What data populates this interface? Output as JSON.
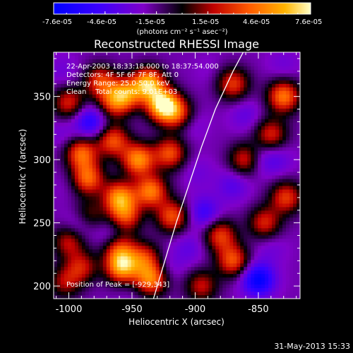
{
  "chart_data": {
    "type": "heatmap",
    "title": "Reconstructed RHESSI Image",
    "xlabel": "Heliocentric X (arcsec)",
    "ylabel": "Heliocentric Y (arcsec)",
    "xlim": [
      -1012,
      -817
    ],
    "ylim": [
      190,
      385
    ],
    "x_ticks": [
      -1000,
      -950,
      -900,
      -850
    ],
    "y_ticks": [
      200,
      250,
      300,
      350
    ],
    "colorbar": {
      "min": -7.6e-05,
      "max": 7.6e-05,
      "tick_labels": [
        "-7.6e-05",
        "-4.6e-05",
        "-1.5e-05",
        "1.5e-05",
        "4.6e-05",
        "7.6e-05"
      ],
      "units": "(photons cm⁻² s⁻¹ asec⁻²)",
      "colors": [
        "#0000ff",
        "#3a00ff",
        "#8000c8",
        "#000000",
        "#c00000",
        "#ff5a00",
        "#ffb400",
        "#ffffc8"
      ]
    },
    "annotations": [
      "22-Apr-2003 18:33:18.000 to 18:37:54.000",
      "Detectors: 4F 5F 6F 7F 8F, Att 0",
      "Energy Range: 25.0-50.0 keV",
      "Clean    Total counts: 9.01E+03"
    ],
    "peak_label": "Position of Peak = [-929,343]",
    "peak": [
      -929,
      343
    ],
    "limb_curve": [
      [
        -933,
        190
      ],
      [
        -924,
        220
      ],
      [
        -915,
        250
      ],
      [
        -905,
        280
      ],
      [
        -895,
        310
      ],
      [
        -884,
        340
      ],
      [
        -870,
        370
      ],
      [
        -862,
        385
      ]
    ],
    "blobs": [
      {
        "x": -925,
        "y": 343,
        "v": 7.6e-05
      },
      {
        "x": -937,
        "y": 360,
        "v": 6e-05
      },
      {
        "x": -955,
        "y": 352,
        "v": 4e-05
      },
      {
        "x": -975,
        "y": 362,
        "v": 3e-05
      },
      {
        "x": -912,
        "y": 335,
        "v": 3e-05
      },
      {
        "x": -965,
        "y": 345,
        "v": 2.5e-05
      },
      {
        "x": -1000,
        "y": 345,
        "v": 2.5e-05
      },
      {
        "x": -990,
        "y": 305,
        "v": 4e-05
      },
      {
        "x": -965,
        "y": 315,
        "v": 3.5e-05
      },
      {
        "x": -945,
        "y": 300,
        "v": 5e-05
      },
      {
        "x": -920,
        "y": 305,
        "v": 3.5e-05
      },
      {
        "x": -985,
        "y": 285,
        "v": 4e-05
      },
      {
        "x": -960,
        "y": 270,
        "v": 5e-05
      },
      {
        "x": -935,
        "y": 275,
        "v": 4.5e-05
      },
      {
        "x": -918,
        "y": 255,
        "v": 3.5e-05
      },
      {
        "x": -985,
        "y": 255,
        "v": 2e-05
      },
      {
        "x": -955,
        "y": 255,
        "v": 3e-05
      },
      {
        "x": -960,
        "y": 230,
        "v": 3e-05
      },
      {
        "x": -940,
        "y": 222,
        "v": 2.5e-05
      },
      {
        "x": -958,
        "y": 215,
        "v": 5.5e-05
      },
      {
        "x": -935,
        "y": 205,
        "v": 4.5e-05
      },
      {
        "x": -990,
        "y": 215,
        "v": 2e-05
      },
      {
        "x": -1000,
        "y": 235,
        "v": 2e-05
      },
      {
        "x": -880,
        "y": 240,
        "v": 3e-05
      },
      {
        "x": -870,
        "y": 220,
        "v": 3.5e-05
      },
      {
        "x": -845,
        "y": 250,
        "v": 2.5e-05
      },
      {
        "x": -860,
        "y": 300,
        "v": 3e-05
      },
      {
        "x": -840,
        "y": 320,
        "v": 2.5e-05
      },
      {
        "x": -830,
        "y": 350,
        "v": 4.5e-05
      },
      {
        "x": -870,
        "y": 360,
        "v": 3e-05
      },
      {
        "x": -828,
        "y": 270,
        "v": 3e-05
      },
      {
        "x": -895,
        "y": 200,
        "v": 2e-05
      },
      {
        "x": -1003,
        "y": 203,
        "v": 1.5e-05
      },
      {
        "x": -850,
        "y": 205,
        "v": -7.6e-05
      },
      {
        "x": -983,
        "y": 330,
        "v": -6e-05
      },
      {
        "x": -990,
        "y": 250,
        "v": -5e-05
      },
      {
        "x": -965,
        "y": 240,
        "v": -4e-05
      },
      {
        "x": -905,
        "y": 330,
        "v": -4e-05
      },
      {
        "x": -893,
        "y": 258,
        "v": -5e-05
      },
      {
        "x": -870,
        "y": 280,
        "v": -4e-05
      },
      {
        "x": -905,
        "y": 230,
        "v": -3.5e-05
      },
      {
        "x": -850,
        "y": 300,
        "v": -4e-05
      },
      {
        "x": -898,
        "y": 290,
        "v": -3e-05
      },
      {
        "x": -860,
        "y": 335,
        "v": -3.5e-05
      },
      {
        "x": -835,
        "y": 300,
        "v": -3.5e-05
      },
      {
        "x": -1005,
        "y": 320,
        "v": -3e-05
      },
      {
        "x": -950,
        "y": 195,
        "v": -2.5e-05
      },
      {
        "x": -1000,
        "y": 280,
        "v": -2.5e-05
      },
      {
        "x": -830,
        "y": 375,
        "v": -3e-05
      },
      {
        "x": -840,
        "y": 230,
        "v": -3e-05
      },
      {
        "x": -920,
        "y": 215,
        "v": -3e-05
      },
      {
        "x": -888,
        "y": 370,
        "v": -2.5e-05
      },
      {
        "x": -1005,
        "y": 370,
        "v": -3e-05
      }
    ]
  },
  "footer": {
    "date": "31-May-2013 15:33"
  }
}
